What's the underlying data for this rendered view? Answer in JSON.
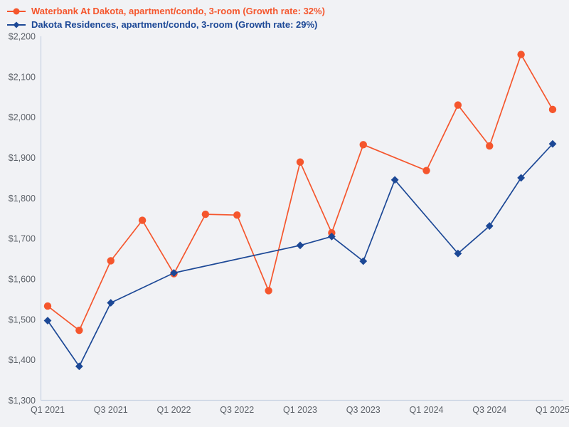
{
  "chart_data": {
    "type": "line",
    "title": "",
    "xlabel": "",
    "ylabel": "",
    "legend_position": "top-left",
    "grid": false,
    "background_color": "#f1f2f5",
    "axis_color": "#c9d3e3",
    "tick_label_color": "#5d6269",
    "ylim": [
      1300,
      2200
    ],
    "y_ticks": [
      1300,
      1400,
      1500,
      1600,
      1700,
      1800,
      1900,
      2000,
      2100,
      2200
    ],
    "y_tick_labels": [
      "$1,300",
      "$1,400",
      "$1,500",
      "$1,600",
      "$1,700",
      "$1,800",
      "$1,900",
      "$2,000",
      "$2,100",
      "$2,200"
    ],
    "x_categories": [
      "Q1 2021",
      "Q2 2021",
      "Q3 2021",
      "Q4 2021",
      "Q1 2022",
      "Q2 2022",
      "Q3 2022",
      "Q4 2022",
      "Q1 2023",
      "Q2 2023",
      "Q3 2023",
      "Q4 2023",
      "Q1 2024",
      "Q2 2024",
      "Q3 2024",
      "Q4 2024",
      "Q1 2025"
    ],
    "x_tick_labels": [
      "Q1 2021",
      "Q3 2021",
      "Q1 2022",
      "Q3 2022",
      "Q1 2023",
      "Q3 2023",
      "Q1 2024",
      "Q3 2024",
      "Q1 2025"
    ],
    "series": [
      {
        "name": "Waterbank At Dakota, apartment/condo, 3-room (Growth rate: 32%)",
        "growth_rate": "32%",
        "color": "#f5562d",
        "marker": "circle",
        "values": [
          1533,
          1473,
          1645,
          1745,
          1613,
          1760,
          1758,
          1571,
          1889,
          1714,
          1932,
          null,
          1868,
          2030,
          1929,
          2155,
          2019
        ]
      },
      {
        "name": "Dakota Residences, apartment/condo, 3-room (Growth rate: 29%)",
        "growth_rate": "29%",
        "color": "#1c4896",
        "marker": "diamond",
        "values": [
          1497,
          1384,
          1541,
          null,
          1615,
          null,
          null,
          null,
          1683,
          1705,
          1644,
          1845,
          null,
          1663,
          1731,
          1850,
          1934
        ]
      }
    ]
  }
}
